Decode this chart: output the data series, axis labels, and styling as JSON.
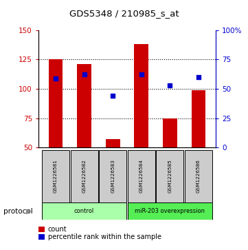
{
  "title": "GDS5348 / 210985_s_at",
  "samples": [
    "GSM1226581",
    "GSM1226582",
    "GSM1226583",
    "GSM1226584",
    "GSM1226585",
    "GSM1226586"
  ],
  "bar_values": [
    125,
    121,
    57,
    138,
    75,
    99
  ],
  "bar_bottom": 50,
  "blue_dot_left_values": [
    109,
    112,
    94,
    112,
    103,
    110
  ],
  "bar_color": "#cc0000",
  "dot_color": "#0000cc",
  "ylim_left": [
    50,
    150
  ],
  "ylim_right": [
    0,
    100
  ],
  "yticks_left": [
    50,
    75,
    100,
    125,
    150
  ],
  "yticks_right": [
    0,
    25,
    50,
    75,
    100
  ],
  "ytick_labels_right": [
    "0",
    "25",
    "50",
    "75",
    "100%"
  ],
  "grid_values": [
    75,
    100,
    125
  ],
  "protocol_groups": [
    {
      "label": "control",
      "indices": [
        0,
        1,
        2
      ],
      "color": "#aaffaa"
    },
    {
      "label": "miR-203 overexpression",
      "indices": [
        3,
        4,
        5
      ],
      "color": "#55ee55"
    }
  ],
  "legend_count_label": "count",
  "legend_pct_label": "percentile rank within the sample",
  "protocol_label": "protocol",
  "sample_box_color": "#cccccc"
}
